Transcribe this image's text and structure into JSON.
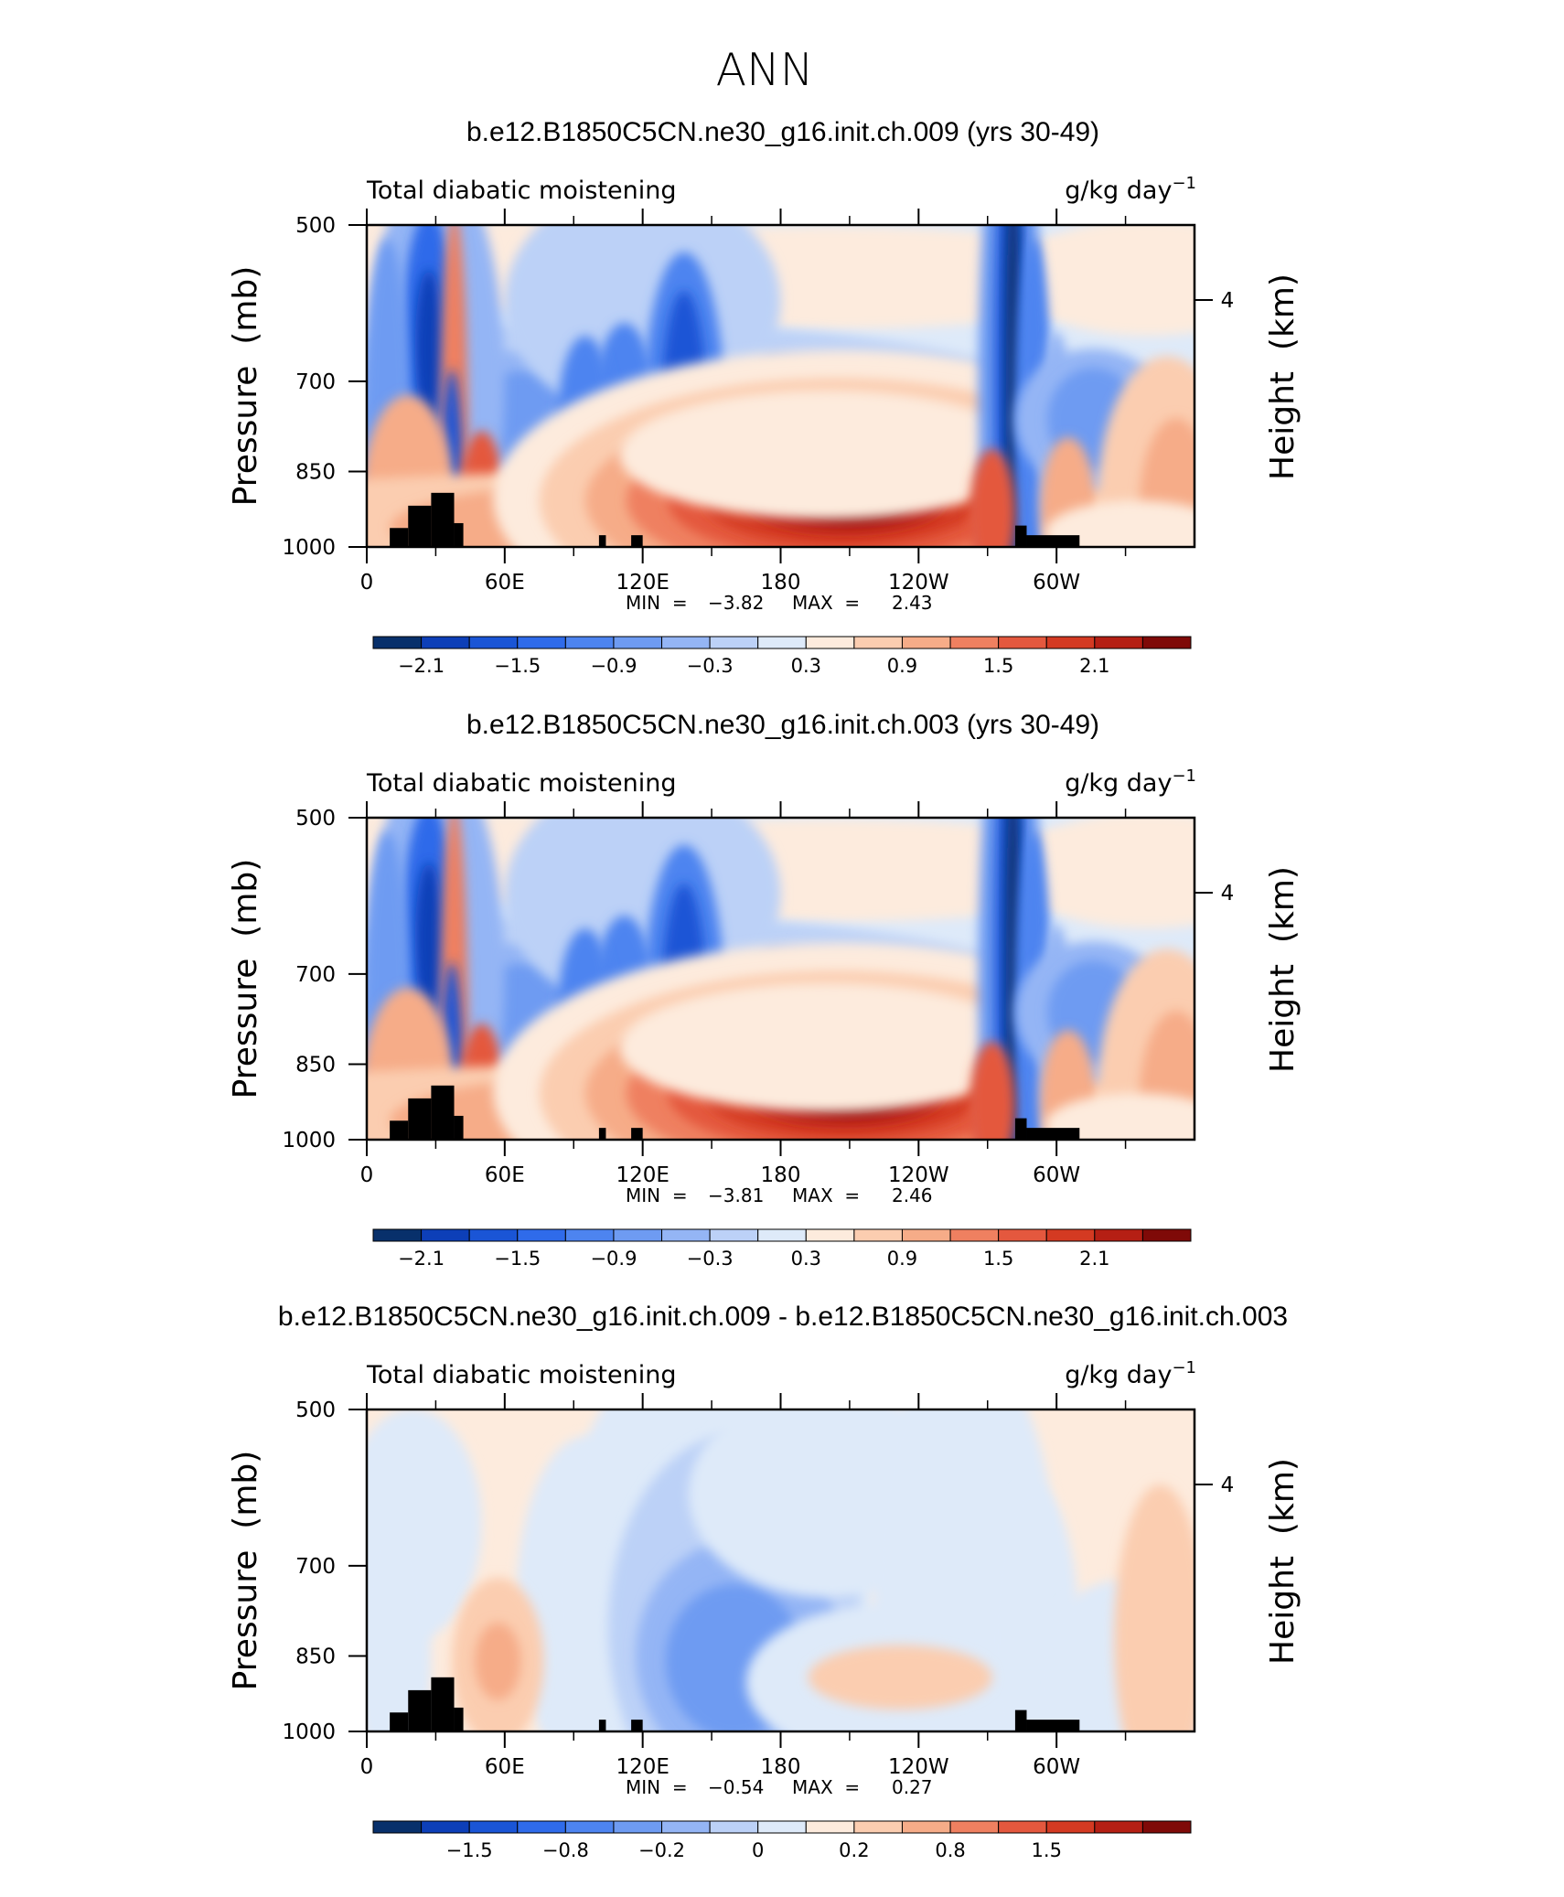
{
  "figure_title": "ANN",
  "chart_data": [
    {
      "type": "heatmap",
      "title": "b.e12.B1850C5CN.ne30_g16.init.ch.009 (yrs 30-49)",
      "left_string": "Total diabatic moistening",
      "right_string": "g/kg day",
      "right_string_exp": "−1",
      "ylabel": "Pressure  (mb)",
      "y2label": "Height  (km)",
      "x_ticklabels": [
        "0",
        "60E",
        "120E",
        "180",
        "120W",
        "60W"
      ],
      "y_ticklabels": [
        "500",
        "700",
        "850",
        "1000"
      ],
      "y2_ticklabels": [
        "4"
      ],
      "xlim": [
        0,
        360
      ],
      "ylim": [
        1000,
        500
      ],
      "min_text": "MIN  =",
      "min_value": "−3.82",
      "max_text": "MAX  =",
      "max_value": "2.43",
      "colorbar_labels": [
        "−2.1",
        "−1.5",
        "−0.9",
        "−0.3",
        "0.3",
        "0.9",
        "1.5",
        "2.1"
      ],
      "levels": [
        -2.4,
        -2.1,
        -1.8,
        -1.5,
        -1.2,
        -0.9,
        -0.6,
        -0.3,
        0,
        0.3,
        0.6,
        0.9,
        1.2,
        1.5,
        1.8,
        2.1,
        2.4
      ],
      "colorbar_colors": [
        "#08306b",
        "#0d3fb8",
        "#1a55d6",
        "#2f6bea",
        "#4d84f0",
        "#6e9bf2",
        "#94b5f5",
        "#bcd1f7",
        "#deeaf9",
        "#fdebdd",
        "#fbcdb0",
        "#f6ac88",
        "#ef8060",
        "#e4583e",
        "#d43a22",
        "#b51f14",
        "#7f0a08"
      ],
      "features": [
        {
          "kind": "low-level heating max",
          "lon_center": 210,
          "p_center": 900,
          "peak": 2.43
        },
        {
          "kind": "drying band",
          "lon_range": [
            60,
            165
          ],
          "p_center": 750,
          "peak": -2.0
        },
        {
          "kind": "drying column",
          "lon_center": 280,
          "p_range": [
            500,
            950
          ],
          "peak": -3.82
        },
        {
          "kind": "drying column",
          "lon_center": 27,
          "p_range": [
            560,
            950
          ],
          "peak": -2.6
        }
      ]
    },
    {
      "type": "heatmap",
      "title": "b.e12.B1850C5CN.ne30_g16.init.ch.003 (yrs 30-49)",
      "left_string": "Total diabatic moistening",
      "right_string": "g/kg day",
      "right_string_exp": "−1",
      "ylabel": "Pressure  (mb)",
      "y2label": "Height  (km)",
      "x_ticklabels": [
        "0",
        "60E",
        "120E",
        "180",
        "120W",
        "60W"
      ],
      "y_ticklabels": [
        "500",
        "700",
        "850",
        "1000"
      ],
      "y2_ticklabels": [
        "4"
      ],
      "xlim": [
        0,
        360
      ],
      "ylim": [
        1000,
        500
      ],
      "min_text": "MIN  =",
      "min_value": "−3.81",
      "max_text": "MAX  =",
      "max_value": "2.46",
      "colorbar_labels": [
        "−2.1",
        "−1.5",
        "−0.9",
        "−0.3",
        "0.3",
        "0.9",
        "1.5",
        "2.1"
      ],
      "levels": [
        -2.4,
        -2.1,
        -1.8,
        -1.5,
        -1.2,
        -0.9,
        -0.6,
        -0.3,
        0,
        0.3,
        0.6,
        0.9,
        1.2,
        1.5,
        1.8,
        2.1,
        2.4
      ],
      "colorbar_colors": [
        "#08306b",
        "#0d3fb8",
        "#1a55d6",
        "#2f6bea",
        "#4d84f0",
        "#6e9bf2",
        "#94b5f5",
        "#bcd1f7",
        "#deeaf9",
        "#fdebdd",
        "#fbcdb0",
        "#f6ac88",
        "#ef8060",
        "#e4583e",
        "#d43a22",
        "#b51f14",
        "#7f0a08"
      ],
      "features": [
        {
          "kind": "low-level heating max",
          "lon_center": 205,
          "p_center": 900,
          "peak": 2.46
        },
        {
          "kind": "drying band",
          "lon_range": [
            60,
            165
          ],
          "p_center": 750,
          "peak": -2.0
        },
        {
          "kind": "drying column",
          "lon_center": 280,
          "p_range": [
            500,
            950
          ],
          "peak": -3.81
        },
        {
          "kind": "drying column",
          "lon_center": 27,
          "p_range": [
            560,
            950
          ],
          "peak": -2.6
        }
      ]
    },
    {
      "type": "heatmap",
      "title": "b.e12.B1850C5CN.ne30_g16.init.ch.009 - b.e12.B1850C5CN.ne30_g16.init.ch.003",
      "left_string": "Total diabatic moistening",
      "right_string": "g/kg day",
      "right_string_exp": "−1",
      "ylabel": "Pressure  (mb)",
      "y2label": "Height  (km)",
      "x_ticklabels": [
        "0",
        "60E",
        "120E",
        "180",
        "120W",
        "60W"
      ],
      "y_ticklabels": [
        "500",
        "700",
        "850",
        "1000"
      ],
      "y2_ticklabels": [
        "4"
      ],
      "xlim": [
        0,
        360
      ],
      "ylim": [
        1000,
        500
      ],
      "min_text": "MIN  =",
      "min_value": "−0.54",
      "max_text": "MAX  =",
      "max_value": "0.27",
      "colorbar_labels": [
        "−1.5",
        "−0.8",
        "−0.2",
        "0",
        "0.2",
        "0.8",
        "1.5"
      ],
      "colorbar_colors": [
        "#08306b",
        "#0d3fb8",
        "#1a55d6",
        "#2f6bea",
        "#4d84f0",
        "#6e9bf2",
        "#94b5f5",
        "#bcd1f7",
        "#deeaf9",
        "#fdebdd",
        "#fbcdb0",
        "#f6ac88",
        "#ef8060",
        "#e4583e",
        "#d43a22",
        "#b51f14",
        "#7f0a08"
      ],
      "features": [
        {
          "kind": "negative difference",
          "lon_center": 160,
          "p_center": 850,
          "peak": -0.54
        },
        {
          "kind": "positive difference",
          "lon_center": 345,
          "p_center": 820,
          "peak": 0.27
        },
        {
          "kind": "positive difference",
          "lon_center": 57,
          "p_center": 850,
          "peak": 0.25
        }
      ]
    }
  ]
}
